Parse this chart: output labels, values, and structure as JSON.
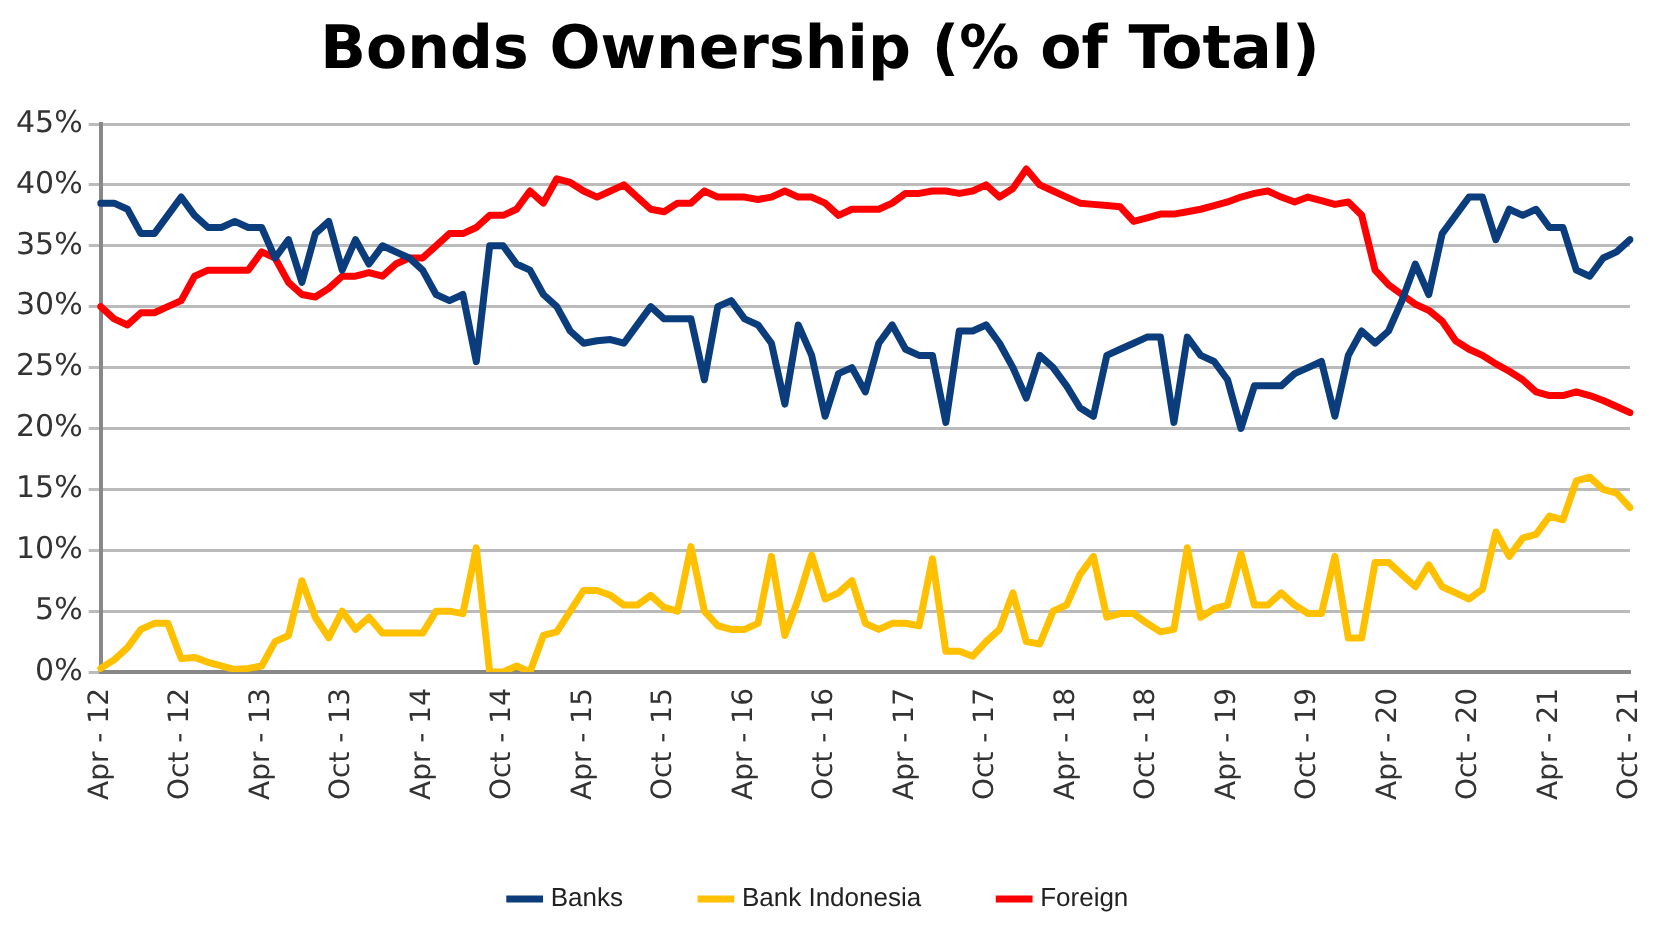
{
  "chart_data": {
    "type": "line",
    "title": "Bonds Ownership (% of Total)",
    "categories": [
      "Apr - 12",
      null,
      null,
      null,
      null,
      null,
      "Oct - 12",
      null,
      null,
      null,
      null,
      null,
      "Apr - 13",
      null,
      null,
      null,
      null,
      null,
      "Oct - 13",
      null,
      null,
      null,
      null,
      null,
      "Apr - 14",
      null,
      null,
      null,
      null,
      null,
      "Oct - 14",
      null,
      null,
      null,
      null,
      null,
      "Apr - 15",
      null,
      null,
      null,
      null,
      null,
      "Oct - 15",
      null,
      null,
      null,
      null,
      null,
      "Apr - 16",
      null,
      null,
      null,
      null,
      null,
      "Oct - 16",
      null,
      null,
      null,
      null,
      null,
      "Apr - 17",
      null,
      null,
      null,
      null,
      null,
      "Oct - 17",
      null,
      null,
      null,
      null,
      null,
      "Apr - 18",
      null,
      null,
      null,
      null,
      null,
      "Oct - 18",
      null,
      null,
      null,
      null,
      null,
      "Apr - 19",
      null,
      null,
      null,
      null,
      null,
      "Oct - 19",
      null,
      null,
      null,
      null,
      null,
      "Apr - 20",
      null,
      null,
      null,
      null,
      null,
      "Oct - 20",
      null,
      null,
      null,
      null,
      null,
      "Apr - 21",
      null,
      null,
      null,
      null,
      null,
      "Oct - 21"
    ],
    "series": [
      {
        "name": "Banks",
        "color": "#0b3d7c",
        "values": [
          38.5,
          38.5,
          38,
          36,
          36,
          37.5,
          39,
          37.5,
          36.5,
          36.5,
          37,
          36.5,
          36.5,
          34,
          35.5,
          32,
          36,
          37,
          33,
          35.5,
          33.5,
          35,
          34.5,
          34,
          33,
          31,
          30.5,
          31,
          25.5,
          35,
          35,
          33.5,
          33,
          31,
          30,
          28,
          27,
          27.2,
          27.3,
          27,
          28.5,
          30,
          29,
          29,
          29,
          24,
          30,
          30.5,
          29,
          28.5,
          27,
          22,
          28.5,
          26,
          21,
          24.5,
          25,
          23,
          27,
          28.5,
          26.5,
          26,
          26,
          20.5,
          28,
          28,
          28.5,
          27,
          25,
          22.5,
          26,
          25,
          23.5,
          21.7,
          21,
          26,
          26.5,
          27,
          27.5,
          27.5,
          20.5,
          27.5,
          26,
          25.5,
          24,
          20,
          23.5,
          23.5,
          23.5,
          24.5,
          25,
          25.5,
          21,
          26,
          28,
          27,
          28,
          30.5,
          33.5,
          31,
          36,
          37.5,
          39,
          39,
          35.5,
          38,
          37.5,
          38,
          36.5,
          36.5,
          33,
          32.5,
          34,
          34.5,
          35.5
        ]
      },
      {
        "name": "Bank Indonesia",
        "color": "#ffc000",
        "values": [
          0.3,
          1,
          2,
          3.5,
          4,
          4,
          1.1,
          1.2,
          0.8,
          0.5,
          0.2,
          0.3,
          0.5,
          2.5,
          3,
          7.5,
          4.5,
          2.8,
          5,
          3.5,
          4.5,
          3.2,
          3.2,
          3.2,
          3.2,
          5,
          5,
          4.8,
          10.2,
          0,
          0,
          0.5,
          0,
          3,
          3.3,
          5,
          6.7,
          6.7,
          6.3,
          5.5,
          5.5,
          6.3,
          5.3,
          5,
          10.3,
          5,
          3.8,
          3.5,
          3.5,
          4,
          9.5,
          3,
          6,
          9.6,
          6,
          6.5,
          7.5,
          4,
          3.5,
          4,
          4,
          3.8,
          9.3,
          1.7,
          1.7,
          1.3,
          2.5,
          3.5,
          6.5,
          2.5,
          2.3,
          5,
          5.5,
          8,
          9.5,
          4.5,
          4.8,
          4.8,
          4,
          3.3,
          3.5,
          10.2,
          4.5,
          5.2,
          5.5,
          9.7,
          5.5,
          5.5,
          6.5,
          5.5,
          4.8,
          4.8,
          9.5,
          2.8,
          2.8,
          9,
          9,
          8,
          7,
          8.8,
          7,
          6.5,
          6,
          6.8,
          11.5,
          9.5,
          11,
          11.3,
          12.8,
          12.5,
          15.7,
          16,
          15,
          14.7,
          13.5
        ]
      },
      {
        "name": "Foreign",
        "color": "#ff0000",
        "values": [
          30,
          29,
          28.5,
          29.5,
          29.5,
          30,
          30.5,
          32.5,
          33,
          33,
          33,
          33,
          34.5,
          34,
          32,
          31,
          30.8,
          31.5,
          32.5,
          32.5,
          32.8,
          32.5,
          33.5,
          34,
          34,
          35,
          36,
          36,
          36.5,
          37.5,
          37.5,
          38,
          39.5,
          38.5,
          40.5,
          40.2,
          39.5,
          39,
          39.5,
          40,
          39,
          38,
          37.8,
          38.5,
          38.5,
          39.5,
          39,
          39,
          39,
          38.8,
          39,
          39.5,
          39,
          39,
          38.5,
          37.5,
          38,
          38,
          38,
          38.5,
          39.3,
          39.3,
          39.5,
          39.5,
          39.3,
          39.5,
          40,
          39,
          39.7,
          41.3,
          40,
          39.5,
          39,
          38.5,
          38.4,
          38.3,
          38.2,
          37,
          37.3,
          37.6,
          37.6,
          37.8,
          38,
          38.3,
          38.6,
          39,
          39.3,
          39.5,
          39,
          38.6,
          39,
          38.7,
          38.4,
          38.6,
          37.5,
          33,
          31.8,
          31,
          30.2,
          29.7,
          28.8,
          27.2,
          26.5,
          26,
          25.3,
          24.7,
          24,
          23,
          22.7,
          22.7,
          23,
          22.7,
          22.3,
          21.8,
          21.3
        ]
      }
    ],
    "ylim": [
      0,
      45
    ],
    "yticks": [
      {
        "value": 0,
        "label": "0%"
      },
      {
        "value": 5,
        "label": "5%"
      },
      {
        "value": 10,
        "label": "10%"
      },
      {
        "value": 15,
        "label": "15%"
      },
      {
        "value": 20,
        "label": "20%"
      },
      {
        "value": 25,
        "label": "25%"
      },
      {
        "value": 30,
        "label": "30%"
      },
      {
        "value": 35,
        "label": "35%"
      },
      {
        "value": 40,
        "label": "40%"
      },
      {
        "value": 45,
        "label": "45%"
      }
    ],
    "grid": "y",
    "legend": "bottom",
    "marker": "none",
    "line_style": "solid"
  }
}
